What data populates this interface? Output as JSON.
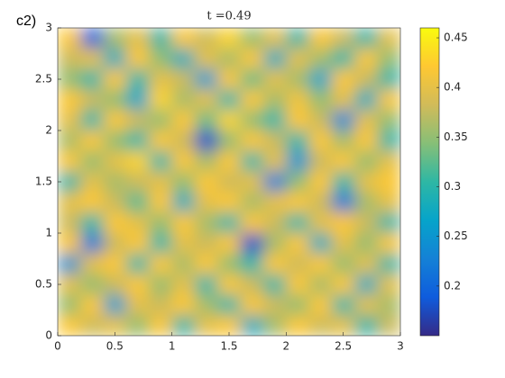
{
  "label": "c2)",
  "chart_data": {
    "type": "heatmap",
    "title": "t =0.49",
    "z": [
      [
        0.42,
        0.2,
        0.36,
        0.4,
        0.3,
        0.42,
        0.38,
        0.43,
        0.35,
        0.4,
        0.3,
        0.42,
        0.38,
        0.3,
        0.4
      ],
      [
        0.38,
        0.4,
        0.28,
        0.42,
        0.35,
        0.28,
        0.4,
        0.36,
        0.42,
        0.28,
        0.4,
        0.36,
        0.3,
        0.42,
        0.35
      ],
      [
        0.35,
        0.3,
        0.42,
        0.3,
        0.4,
        0.38,
        0.26,
        0.42,
        0.33,
        0.4,
        0.36,
        0.27,
        0.42,
        0.38,
        0.3
      ],
      [
        0.42,
        0.38,
        0.35,
        0.27,
        0.43,
        0.36,
        0.4,
        0.3,
        0.42,
        0.36,
        0.41,
        0.35,
        0.4,
        0.28,
        0.42
      ],
      [
        0.4,
        0.3,
        0.42,
        0.38,
        0.35,
        0.42,
        0.33,
        0.43,
        0.35,
        0.3,
        0.42,
        0.38,
        0.24,
        0.4,
        0.35
      ],
      [
        0.36,
        0.42,
        0.35,
        0.3,
        0.42,
        0.38,
        0.18,
        0.35,
        0.42,
        0.38,
        0.3,
        0.42,
        0.36,
        0.42,
        0.3
      ],
      [
        0.42,
        0.35,
        0.4,
        0.43,
        0.3,
        0.42,
        0.36,
        0.42,
        0.3,
        0.4,
        0.25,
        0.38,
        0.42,
        0.35,
        0.4
      ],
      [
        0.3,
        0.4,
        0.36,
        0.38,
        0.4,
        0.35,
        0.42,
        0.38,
        0.4,
        0.23,
        0.35,
        0.42,
        0.3,
        0.4,
        0.42
      ],
      [
        0.4,
        0.42,
        0.38,
        0.32,
        0.42,
        0.28,
        0.4,
        0.42,
        0.36,
        0.4,
        0.42,
        0.38,
        0.22,
        0.36,
        0.4
      ],
      [
        0.38,
        0.3,
        0.42,
        0.4,
        0.35,
        0.42,
        0.36,
        0.3,
        0.42,
        0.38,
        0.3,
        0.4,
        0.42,
        0.38,
        0.3
      ],
      [
        0.42,
        0.22,
        0.38,
        0.42,
        0.3,
        0.4,
        0.38,
        0.42,
        0.18,
        0.36,
        0.42,
        0.28,
        0.4,
        0.35,
        0.42
      ],
      [
        0.25,
        0.4,
        0.42,
        0.3,
        0.42,
        0.36,
        0.42,
        0.35,
        0.3,
        0.42,
        0.38,
        0.42,
        0.35,
        0.4,
        0.3
      ],
      [
        0.4,
        0.35,
        0.38,
        0.42,
        0.35,
        0.4,
        0.3,
        0.42,
        0.38,
        0.3,
        0.42,
        0.36,
        0.42,
        0.28,
        0.4
      ],
      [
        0.35,
        0.42,
        0.26,
        0.4,
        0.38,
        0.42,
        0.36,
        0.3,
        0.42,
        0.38,
        0.35,
        0.42,
        0.3,
        0.4,
        0.36
      ],
      [
        0.42,
        0.38,
        0.4,
        0.35,
        0.42,
        0.3,
        0.4,
        0.42,
        0.28,
        0.36,
        0.42,
        0.38,
        0.4,
        0.3,
        0.38
      ]
    ],
    "xlim": [
      0,
      3
    ],
    "ylim": [
      0,
      3
    ],
    "xticks": [
      0,
      0.5,
      1,
      1.5,
      2,
      2.5,
      3
    ],
    "yticks": [
      0,
      0.5,
      1,
      1.5,
      2,
      2.5,
      3
    ],
    "clim": [
      0.15,
      0.46
    ],
    "cticks": [
      0.2,
      0.25,
      0.3,
      0.35,
      0.4,
      0.45
    ],
    "colormap": [
      "#352a87",
      "#0f5cdd",
      "#1481d6",
      "#06a4ca",
      "#2eb7a4",
      "#87bf77",
      "#d1bb59",
      "#fec832",
      "#f9fb0e"
    ]
  }
}
